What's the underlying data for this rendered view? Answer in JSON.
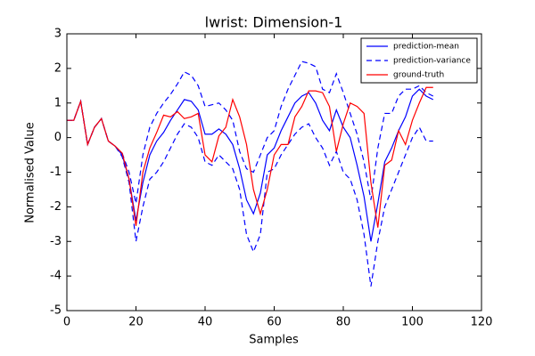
{
  "chart_data": {
    "type": "line",
    "title": "lwrist: Dimension-1",
    "xlabel": "Samples",
    "ylabel": "Normalised Value",
    "x": [
      0,
      2,
      4,
      6,
      8,
      10,
      12,
      14,
      16,
      18,
      20,
      22,
      24,
      26,
      28,
      30,
      32,
      34,
      36,
      38,
      40,
      42,
      44,
      46,
      48,
      50,
      52,
      54,
      56,
      58,
      60,
      62,
      64,
      66,
      68,
      70,
      72,
      74,
      76,
      78,
      80,
      82,
      84,
      86,
      88,
      90,
      92,
      94,
      96,
      98,
      100,
      102,
      104,
      106
    ],
    "series": [
      {
        "name": "prediction-mean",
        "color": "#0000ff",
        "linestyle": "solid",
        "values": [
          0.5,
          0.5,
          1.05,
          -0.2,
          0.3,
          0.55,
          -0.1,
          -0.25,
          -0.5,
          -1.2,
          -2.4,
          -1.3,
          -0.5,
          -0.1,
          0.15,
          0.5,
          0.8,
          1.1,
          1.05,
          0.8,
          0.1,
          0.1,
          0.25,
          0.1,
          -0.2,
          -0.9,
          -1.8,
          -2.2,
          -1.6,
          -0.5,
          -0.3,
          0.2,
          0.6,
          1.0,
          1.2,
          1.3,
          1.0,
          0.5,
          0.2,
          0.8,
          0.3,
          0.0,
          -0.8,
          -1.7,
          -3.0,
          -1.9,
          -0.7,
          -0.3,
          0.2,
          0.6,
          1.2,
          1.4,
          1.2,
          1.1
        ]
      },
      {
        "name": "prediction-variance",
        "color": "#0000ff",
        "linestyle": "dashed",
        "upper": [
          0.5,
          0.5,
          1.05,
          -0.2,
          0.3,
          0.55,
          -0.1,
          -0.25,
          -0.45,
          -1.0,
          -1.9,
          -0.5,
          0.3,
          0.7,
          1.0,
          1.25,
          1.55,
          1.9,
          1.8,
          1.5,
          0.9,
          0.95,
          1.0,
          0.8,
          0.5,
          -0.4,
          -0.9,
          -1.0,
          -0.5,
          0.0,
          0.2,
          0.9,
          1.4,
          1.8,
          2.2,
          2.15,
          2.05,
          1.4,
          1.3,
          1.85,
          1.3,
          0.7,
          0.1,
          -0.7,
          -1.8,
          -0.3,
          0.7,
          0.7,
          1.2,
          1.4,
          1.4,
          1.5,
          1.3,
          1.2
        ],
        "lower": [
          0.5,
          0.5,
          1.05,
          -0.2,
          0.3,
          0.55,
          -0.1,
          -0.25,
          -0.55,
          -1.3,
          -3.0,
          -2.0,
          -1.2,
          -1.0,
          -0.7,
          -0.3,
          0.1,
          0.4,
          0.3,
          0.0,
          -0.7,
          -0.8,
          -0.5,
          -0.7,
          -0.9,
          -1.5,
          -2.8,
          -3.3,
          -2.8,
          -1.0,
          -0.9,
          -0.5,
          -0.2,
          0.1,
          0.3,
          0.4,
          0.0,
          -0.3,
          -0.8,
          -0.4,
          -1.0,
          -1.2,
          -1.8,
          -2.8,
          -4.3,
          -3.0,
          -2.0,
          -1.5,
          -1.0,
          -0.5,
          0.0,
          0.3,
          -0.1,
          -0.1
        ]
      },
      {
        "name": "ground-truth",
        "color": "#ff0000",
        "linestyle": "solid",
        "values": [
          0.5,
          0.5,
          1.05,
          -0.2,
          0.3,
          0.55,
          -0.1,
          -0.25,
          -0.45,
          -1.2,
          -2.55,
          -1.0,
          -0.3,
          0.15,
          0.65,
          0.6,
          0.75,
          0.55,
          0.6,
          0.7,
          -0.5,
          -0.7,
          0.05,
          0.3,
          1.1,
          0.6,
          -0.2,
          -1.5,
          -2.2,
          -1.5,
          -0.5,
          -0.2,
          -0.2,
          0.6,
          0.9,
          1.35,
          1.35,
          1.3,
          0.9,
          -0.4,
          0.4,
          1.0,
          0.9,
          0.7,
          -1.3,
          -2.6,
          -0.8,
          -0.65,
          0.2,
          -0.2,
          0.5,
          1.0,
          1.45,
          1.45
        ]
      }
    ],
    "xlim": [
      0,
      120
    ],
    "xticks": [
      0,
      20,
      40,
      60,
      80,
      100,
      120
    ],
    "ylim": [
      -5,
      3
    ],
    "yticks": [
      -5,
      -4,
      -3,
      -2,
      -1,
      0,
      1,
      2,
      3
    ],
    "legend": "upper right"
  }
}
